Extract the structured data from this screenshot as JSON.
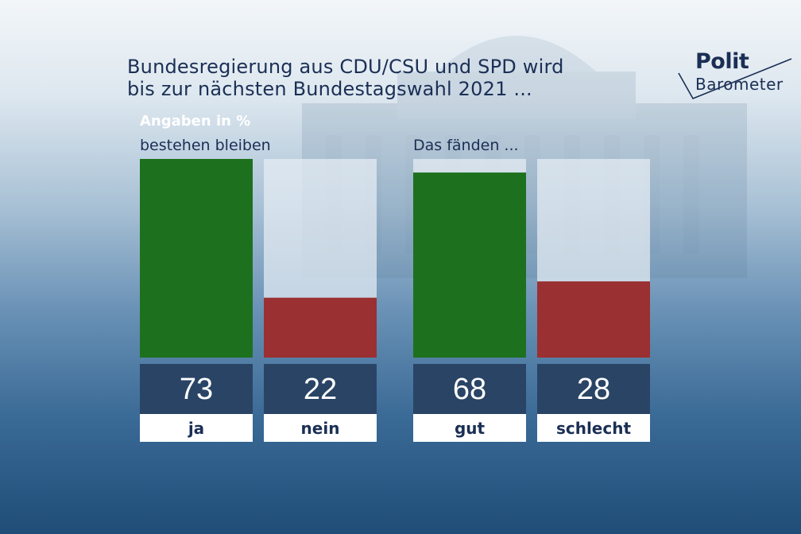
{
  "title_lines": [
    "Bundesregierung aus CDU/CSU und SPD wird",
    "bis zur nächsten Bundestagswahl 2021 ..."
  ],
  "unit_note": "Angaben in %",
  "logo": {
    "line1": "Polit",
    "line2": "Barometer"
  },
  "colors": {
    "positive": "#1d711e",
    "negative": "#9a3031",
    "value_box": "#2a4466",
    "track": "#e6edf4",
    "text": "#1b2f55"
  },
  "chart_data": [
    {
      "type": "bar",
      "title": "bestehen bleiben",
      "categories": [
        "ja",
        "nein"
      ],
      "values": [
        73,
        22
      ],
      "ylim": [
        0,
        73
      ]
    },
    {
      "type": "bar",
      "title": "Das fänden ...",
      "categories": [
        "gut",
        "schlecht"
      ],
      "values": [
        68,
        28
      ],
      "ylim": [
        0,
        73
      ]
    }
  ]
}
